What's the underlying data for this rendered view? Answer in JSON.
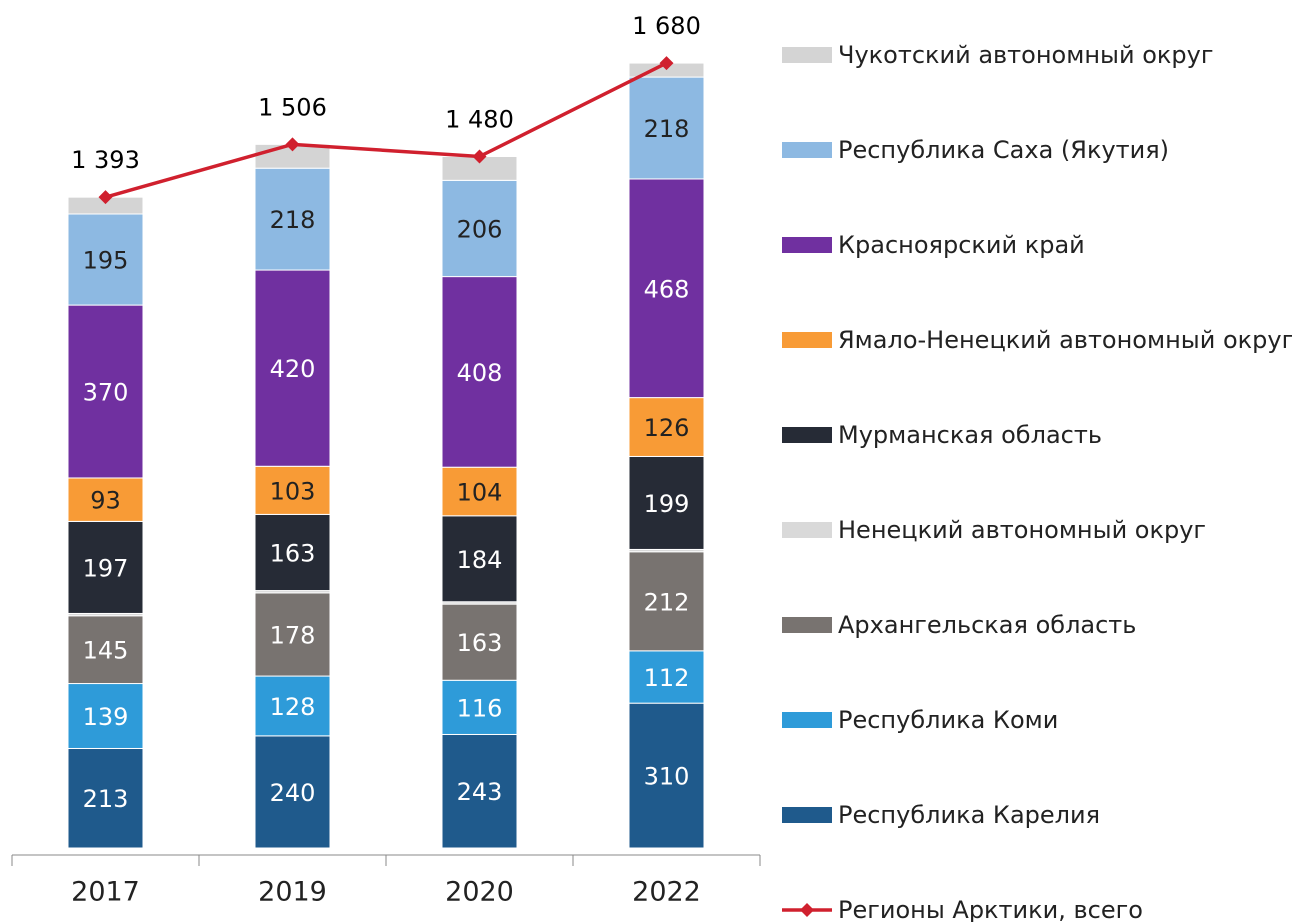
{
  "chart_data": {
    "type": "bar",
    "stacked": true,
    "categories": [
      "2017",
      "2019",
      "2020",
      "2022"
    ],
    "ylim": [
      0,
      1800
    ],
    "series": [
      {
        "name": "Республика Карелия",
        "color": "#1f5a8c",
        "values": [
          213,
          240,
          243,
          310
        ],
        "label_color": "#ffffff"
      },
      {
        "name": "Республика Коми",
        "color": "#2e9bd9",
        "values": [
          139,
          128,
          116,
          112
        ],
        "label_color": "#ffffff"
      },
      {
        "name": "Архангельская область",
        "color": "#787370",
        "values": [
          145,
          178,
          163,
          212
        ],
        "label_color": "#ffffff"
      },
      {
        "name": "Ненецкий автономный округ",
        "color": "#d9d9d9",
        "values": [
          5,
          5,
          5,
          5
        ]
      },
      {
        "name": "Мурманская область",
        "color": "#262b36",
        "values": [
          197,
          163,
          184,
          199
        ],
        "label_color": "#ffffff"
      },
      {
        "name": "Ямало-Ненецкий автономный округ",
        "color": "#f89b36",
        "values": [
          93,
          103,
          104,
          126
        ],
        "label_color": "#222222"
      },
      {
        "name": "Красноярский край",
        "color": "#7030a0",
        "values": [
          370,
          420,
          408,
          468
        ],
        "label_color": "#ffffff"
      },
      {
        "name": "Республика Саха (Якутия)",
        "color": "#8db9e2",
        "values": [
          195,
          218,
          206,
          218
        ],
        "label_color": "#222222"
      },
      {
        "name": "Чукотский автономный округ",
        "color": "#d4d4d4",
        "values": [
          36,
          51,
          51,
          30
        ]
      }
    ],
    "line": {
      "name": "Регионы Арктики, всего",
      "color": "#d0202e",
      "values": [
        1393,
        1506,
        1480,
        1680
      ],
      "value_labels": [
        "1 393",
        "1 506",
        "1 480",
        "1 680"
      ]
    }
  }
}
